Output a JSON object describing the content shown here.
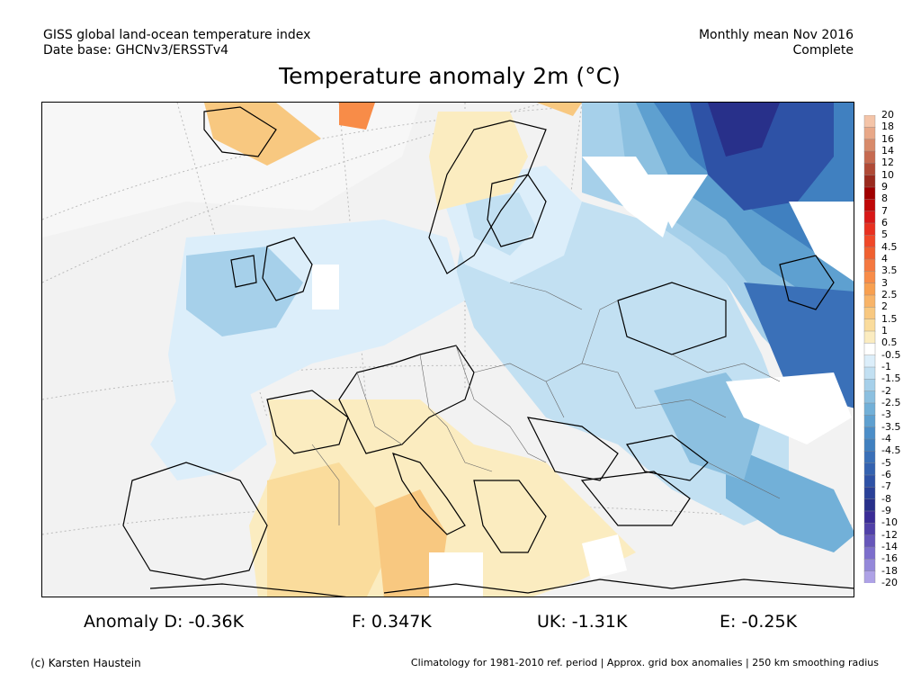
{
  "header": {
    "line1_left": "GISS global land-ocean temperature index",
    "line2_left": "Date base: GHCNv3/ERSSTv4",
    "line1_right": "Monthly mean Nov 2016",
    "line2_right": "Complete"
  },
  "title": "Temperature anomaly 2m (°C)",
  "stats": [
    {
      "label": "Anomaly D: -0.36K"
    },
    {
      "label": "F: 0.347K"
    },
    {
      "label": "UK: -1.31K"
    },
    {
      "label": "E: -0.25K"
    }
  ],
  "footer": {
    "left": "(c) Karsten Haustein",
    "right": "Climatology for 1981-2010 ref. period | Approx. grid box anomalies | 250 km smoothing radius"
  },
  "colorbar": {
    "labels": [
      "20",
      "18",
      "16",
      "14",
      "12",
      "10",
      "9",
      "8",
      "7",
      "6",
      "5",
      "4.5",
      "4",
      "3.5",
      "3",
      "2.5",
      "2",
      "1.5",
      "1",
      "0.5",
      "-0.5",
      "-1",
      "-1.5",
      "-2",
      "-2.5",
      "-3",
      "-3.5",
      "-4",
      "-4.5",
      "-5",
      "-6",
      "-7",
      "-8",
      "-9",
      "-10",
      "-12",
      "-14",
      "-16",
      "-18",
      "-20"
    ],
    "colors": [
      "#f4c4a8",
      "#e8a888",
      "#d88a6a",
      "#c66a50",
      "#b04a36",
      "#9a2a1e",
      "#a00000",
      "#c00808",
      "#d81818",
      "#e83020",
      "#f04828",
      "#f06030",
      "#f57840",
      "#f88c48",
      "#f8a050",
      "#f8b468",
      "#f8c880",
      "#fadc9c",
      "#fbecc0",
      "#ffffff",
      "#dceefa",
      "#c2e0f2",
      "#a6d0ea",
      "#8cc0e0",
      "#72b0d8",
      "#5ea0d0",
      "#4c8ec8",
      "#4080c0",
      "#3a70b8",
      "#3462b0",
      "#2e52a6",
      "#2a4198",
      "#28308a",
      "#3a2c96",
      "#5040a8",
      "#6656ba",
      "#7c6ecc",
      "#9488da",
      "#aea2e6",
      "#c8bcf0"
    ]
  },
  "map": {
    "ocean_color": "#f2f2f2",
    "land_color": "#f1f1f1",
    "border_color": "#000000"
  }
}
